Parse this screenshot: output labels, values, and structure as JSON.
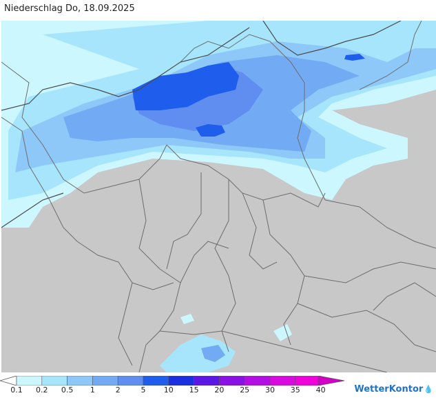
{
  "title": "Niederschlag Do, 18.09.2025",
  "legend": {
    "labels": [
      "0.1",
      "0.2",
      "0.5",
      "1",
      "2",
      "5",
      "10",
      "15",
      "20",
      "25",
      "30",
      "35",
      "40"
    ],
    "colors": [
      "#ffffff",
      "#ccf7ff",
      "#a6e5fb",
      "#8dc8f8",
      "#73aaf4",
      "#5f8ef0",
      "#1f5ded",
      "#1b2fe0",
      "#5a17e6",
      "#8a10e6",
      "#b20ee3",
      "#d90adf",
      "#f000d8",
      "#d400c8"
    ]
  },
  "brand": {
    "name": "WetterKontor",
    "mark": "💧"
  },
  "map_colors": {
    "land": "#c8c8c8",
    "border": "#6c6c6c",
    "outline": "#4a4a4a"
  }
}
